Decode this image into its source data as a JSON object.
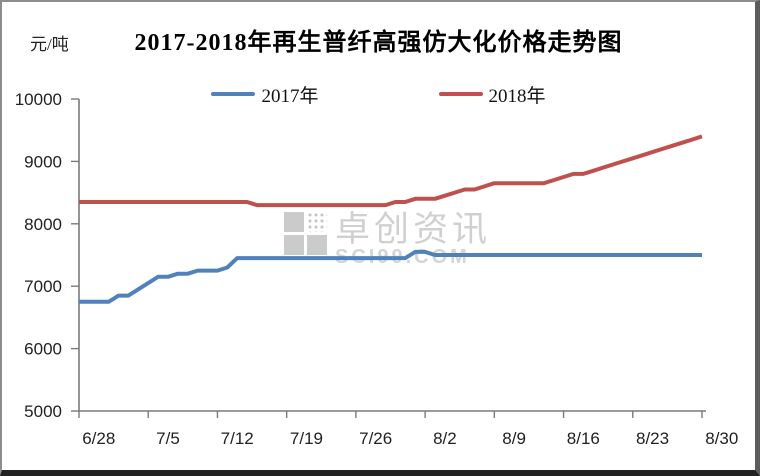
{
  "page": {
    "title": "2017-2018年再生普纤高强仿大化价格走势图",
    "unit_label": "元/吨"
  },
  "watermark": {
    "brand": "卓创资讯",
    "site": "SCI99.COM"
  },
  "colors": {
    "series_2017": "#4f81bd",
    "series_2018": "#c0504d",
    "axis": "#7a7a7a",
    "tick_text": "#222222",
    "watermark": "#d0d0d0"
  },
  "chart_data": {
    "type": "line",
    "title": "2017-2018年再生普纤高强仿大化价格走势图",
    "xlabel": "",
    "ylabel": "元/吨",
    "ylim": [
      5000,
      10000
    ],
    "yticks": [
      5000,
      6000,
      7000,
      8000,
      9000,
      10000
    ],
    "xtick_labels": [
      "6/28",
      "7/5",
      "7/12",
      "7/19",
      "7/26",
      "8/2",
      "8/9",
      "8/16",
      "8/23",
      "8/30"
    ],
    "grid": false,
    "legend_position": "top-center",
    "dates": [
      "6/26",
      "6/27",
      "6/28",
      "6/29",
      "6/30",
      "7/1",
      "7/2",
      "7/3",
      "7/4",
      "7/5",
      "7/6",
      "7/7",
      "7/8",
      "7/9",
      "7/10",
      "7/11",
      "7/12",
      "7/13",
      "7/14",
      "7/15",
      "7/16",
      "7/17",
      "7/18",
      "7/19",
      "7/20",
      "7/21",
      "7/22",
      "7/23",
      "7/24",
      "7/25",
      "7/26",
      "7/27",
      "7/28",
      "7/29",
      "7/30",
      "7/31",
      "8/1",
      "8/2",
      "8/3",
      "8/4",
      "8/5",
      "8/6",
      "8/7",
      "8/8",
      "8/9",
      "8/10",
      "8/11",
      "8/12",
      "8/13",
      "8/14",
      "8/15",
      "8/16",
      "8/17",
      "8/18",
      "8/19",
      "8/20",
      "8/21",
      "8/22",
      "8/23",
      "8/24",
      "8/25",
      "8/26",
      "8/27",
      "8/28"
    ],
    "series": [
      {
        "name": "2017年",
        "color": "#4f81bd",
        "values": [
          6750,
          6750,
          6750,
          6750,
          6850,
          6850,
          6950,
          7050,
          7150,
          7150,
          7200,
          7200,
          7250,
          7250,
          7250,
          7300,
          7450,
          7450,
          7450,
          7450,
          7450,
          7450,
          7450,
          7450,
          7450,
          7450,
          7450,
          7450,
          7450,
          7450,
          7450,
          7450,
          7450,
          7450,
          7550,
          7550,
          7500,
          7500,
          7500,
          7500,
          7500,
          7500,
          7500,
          7500,
          7500,
          7500,
          7500,
          7500,
          7500,
          7500,
          7500,
          7500,
          7500,
          7500,
          7500,
          7500,
          7500,
          7500,
          7500,
          7500,
          7500,
          7500,
          7500,
          7500
        ]
      },
      {
        "name": "2018年",
        "color": "#c0504d",
        "values": [
          8350,
          8350,
          8350,
          8350,
          8350,
          8350,
          8350,
          8350,
          8350,
          8350,
          8350,
          8350,
          8350,
          8350,
          8350,
          8350,
          8350,
          8350,
          8300,
          8300,
          8300,
          8300,
          8300,
          8300,
          8300,
          8300,
          8300,
          8300,
          8300,
          8300,
          8300,
          8300,
          8350,
          8350,
          8400,
          8400,
          8400,
          8450,
          8500,
          8550,
          8550,
          8600,
          8650,
          8650,
          8650,
          8650,
          8650,
          8650,
          8700,
          8750,
          8800,
          8800,
          8850,
          8900,
          8950,
          9000,
          9050,
          9100,
          9150,
          9200,
          9250,
          9300,
          9350,
          9400
        ]
      }
    ]
  }
}
